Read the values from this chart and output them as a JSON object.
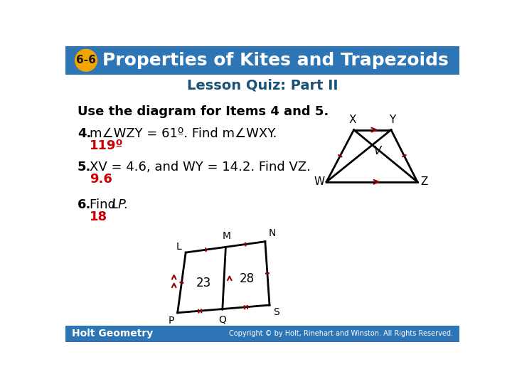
{
  "title_badge": "6-6",
  "title_text": "Properties of Kites and Trapezoids",
  "subtitle": "Lesson Quiz: Part II",
  "header_bg": "#2E75B6",
  "badge_bg": "#F0A500",
  "badge_text_color": "#1a1a1a",
  "title_text_color": "#FFFFFF",
  "subtitle_color": "#1a5276",
  "body_bg": "#FFFFFF",
  "footer_bg": "#2E75B6",
  "footer_left": "Holt Geometry",
  "footer_right": "Copyright © by Holt, Rinehart and Winston. All Rights Reserved.",
  "footer_text_color": "#FFFFFF",
  "text_color": "#000000",
  "answer_color": "#CC0000",
  "use_text": "Use the diagram for Items 4 and 5.",
  "q4_answer": "119º",
  "q5_answer": "9.6",
  "q6_answer": "18",
  "mark_color": "#990000"
}
